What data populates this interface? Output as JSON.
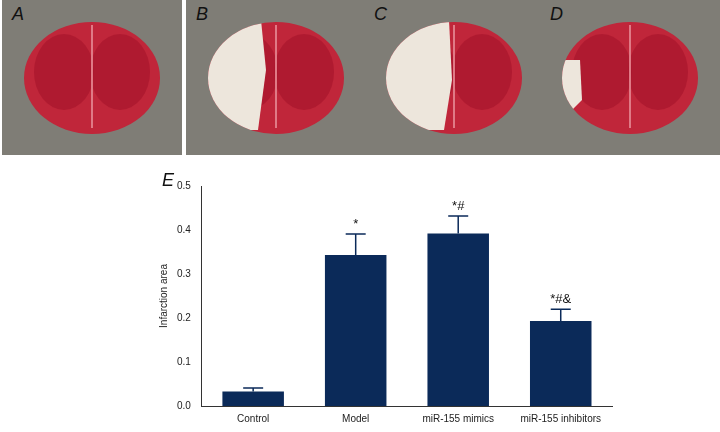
{
  "panel_labels": [
    "A",
    "B",
    "C",
    "D"
  ],
  "chart_data": {
    "type": "bar",
    "panel_label": "E",
    "y_label": "Infarction area",
    "categories": [
      "Control",
      "Model",
      "miR-155 mimics",
      "miR-155 inhibitors"
    ],
    "values": [
      0.033,
      0.343,
      0.392,
      0.193
    ],
    "errors": [
      0.008,
      0.048,
      0.04,
      0.027
    ],
    "annotations": [
      null,
      "*",
      "*#",
      "*#&"
    ],
    "color": "#0b2a59",
    "ylim": [
      0,
      0.5
    ],
    "yticks": [
      {
        "value": 0,
        "label": "0.0"
      },
      {
        "value": 0.1,
        "label": "0.1"
      },
      {
        "value": 0.2,
        "label": "0.2"
      },
      {
        "value": 0.3,
        "label": "0.3"
      },
      {
        "value": 0.4,
        "label": "0.4"
      },
      {
        "value": 0.5,
        "label": "0.5"
      }
    ],
    "grid": false
  }
}
